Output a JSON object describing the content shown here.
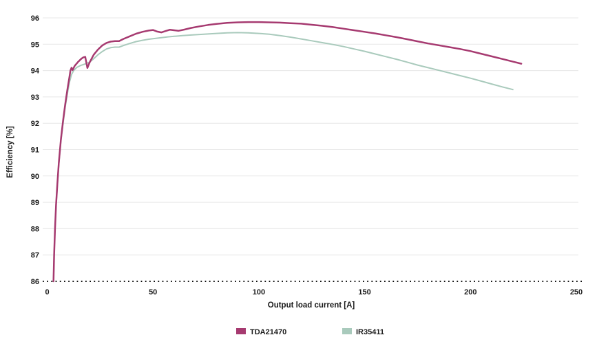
{
  "chart_data": {
    "type": "line",
    "title": "",
    "xlabel": "Output load current [A]",
    "ylabel": "Efficiency [%]",
    "xlim": [
      0,
      250
    ],
    "ylim": [
      86,
      96
    ],
    "x_ticks": [
      0,
      50,
      100,
      150,
      200,
      250
    ],
    "y_ticks": [
      86,
      87,
      88,
      89,
      90,
      91,
      92,
      93,
      94,
      95,
      96
    ],
    "grid": "horizontal-light",
    "baseline_style": "dotted-black-at-86",
    "legend_position": "bottom-center",
    "colors": {
      "grid": "#e7e7e7",
      "baseline": "#111111",
      "text": "#1a1a1a",
      "background": "#ffffff"
    },
    "series": [
      {
        "name": "TDA21470",
        "color": "#a63a70",
        "points": [
          [
            3,
            86.0
          ],
          [
            3.3,
            87.0
          ],
          [
            3.7,
            88.0
          ],
          [
            4.2,
            88.9
          ],
          [
            4.8,
            89.7
          ],
          [
            5.5,
            90.5
          ],
          [
            6.5,
            91.4
          ],
          [
            7.5,
            92.1
          ],
          [
            8.5,
            92.7
          ],
          [
            9.5,
            93.25
          ],
          [
            10.5,
            93.75
          ],
          [
            11,
            94.0
          ],
          [
            11.5,
            94.11
          ],
          [
            12,
            94.02
          ],
          [
            13,
            94.18
          ],
          [
            14.5,
            94.32
          ],
          [
            16,
            94.44
          ],
          [
            17,
            94.5
          ],
          [
            18,
            94.52
          ],
          [
            19,
            94.1
          ],
          [
            20,
            94.3
          ],
          [
            22,
            94.6
          ],
          [
            24,
            94.8
          ],
          [
            26,
            94.95
          ],
          [
            28,
            95.05
          ],
          [
            30,
            95.1
          ],
          [
            32,
            95.12
          ],
          [
            34,
            95.12
          ],
          [
            36,
            95.2
          ],
          [
            39,
            95.3
          ],
          [
            42,
            95.4
          ],
          [
            45,
            95.47
          ],
          [
            48,
            95.52
          ],
          [
            50,
            95.54
          ],
          [
            52,
            95.48
          ],
          [
            54,
            95.45
          ],
          [
            56,
            95.5
          ],
          [
            58,
            95.55
          ],
          [
            60,
            95.53
          ],
          [
            62,
            95.51
          ],
          [
            65,
            95.56
          ],
          [
            68,
            95.62
          ],
          [
            72,
            95.68
          ],
          [
            76,
            95.73
          ],
          [
            80,
            95.77
          ],
          [
            85,
            95.81
          ],
          [
            90,
            95.83
          ],
          [
            95,
            95.84
          ],
          [
            100,
            95.84
          ],
          [
            105,
            95.83
          ],
          [
            110,
            95.82
          ],
          [
            115,
            95.8
          ],
          [
            120,
            95.78
          ],
          [
            125,
            95.74
          ],
          [
            130,
            95.7
          ],
          [
            135,
            95.65
          ],
          [
            140,
            95.59
          ],
          [
            145,
            95.53
          ],
          [
            150,
            95.47
          ],
          [
            155,
            95.41
          ],
          [
            160,
            95.34
          ],
          [
            165,
            95.27
          ],
          [
            170,
            95.19
          ],
          [
            175,
            95.11
          ],
          [
            180,
            95.03
          ],
          [
            185,
            94.96
          ],
          [
            190,
            94.89
          ],
          [
            195,
            94.82
          ],
          [
            200,
            94.74
          ],
          [
            205,
            94.64
          ],
          [
            210,
            94.54
          ],
          [
            215,
            94.44
          ],
          [
            220,
            94.34
          ],
          [
            224,
            94.26
          ]
        ]
      },
      {
        "name": "IR35411",
        "color": "#a9cabc",
        "points": [
          [
            3,
            86.0
          ],
          [
            3.3,
            87.0
          ],
          [
            3.7,
            88.0
          ],
          [
            4.2,
            88.88
          ],
          [
            4.8,
            89.65
          ],
          [
            5.5,
            90.45
          ],
          [
            6.5,
            91.35
          ],
          [
            7.5,
            92.0
          ],
          [
            8.5,
            92.6
          ],
          [
            9.5,
            93.1
          ],
          [
            10.5,
            93.55
          ],
          [
            11.5,
            93.85
          ],
          [
            12.5,
            94.0
          ],
          [
            14,
            94.12
          ],
          [
            16,
            94.2
          ],
          [
            18,
            94.25
          ],
          [
            20,
            94.32
          ],
          [
            22,
            94.45
          ],
          [
            24,
            94.6
          ],
          [
            26,
            94.72
          ],
          [
            28,
            94.82
          ],
          [
            30,
            94.87
          ],
          [
            32,
            94.89
          ],
          [
            34,
            94.89
          ],
          [
            36,
            94.95
          ],
          [
            39,
            95.03
          ],
          [
            42,
            95.1
          ],
          [
            45,
            95.15
          ],
          [
            48,
            95.19
          ],
          [
            51,
            95.22
          ],
          [
            54,
            95.25
          ],
          [
            57,
            95.28
          ],
          [
            60,
            95.3
          ],
          [
            64,
            95.33
          ],
          [
            68,
            95.35
          ],
          [
            72,
            95.37
          ],
          [
            76,
            95.39
          ],
          [
            80,
            95.41
          ],
          [
            85,
            95.43
          ],
          [
            90,
            95.44
          ],
          [
            95,
            95.43
          ],
          [
            100,
            95.41
          ],
          [
            105,
            95.38
          ],
          [
            110,
            95.33
          ],
          [
            115,
            95.27
          ],
          [
            120,
            95.2
          ],
          [
            125,
            95.13
          ],
          [
            130,
            95.06
          ],
          [
            135,
            94.99
          ],
          [
            140,
            94.91
          ],
          [
            145,
            94.82
          ],
          [
            150,
            94.73
          ],
          [
            155,
            94.63
          ],
          [
            160,
            94.53
          ],
          [
            165,
            94.43
          ],
          [
            170,
            94.32
          ],
          [
            175,
            94.21
          ],
          [
            180,
            94.11
          ],
          [
            185,
            94.01
          ],
          [
            190,
            93.91
          ],
          [
            195,
            93.81
          ],
          [
            200,
            93.71
          ],
          [
            205,
            93.6
          ],
          [
            210,
            93.49
          ],
          [
            215,
            93.38
          ],
          [
            220,
            93.28
          ]
        ]
      }
    ]
  }
}
